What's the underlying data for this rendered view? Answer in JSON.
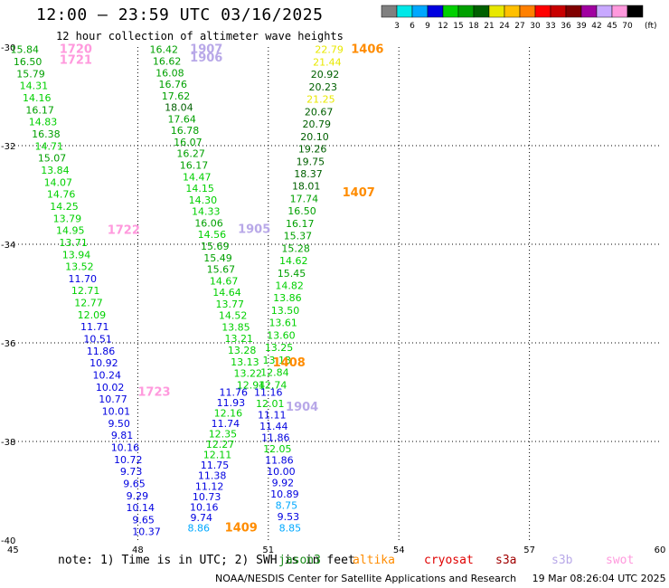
{
  "title": "12:00 — 23:59 UTC 03/16/2025",
  "subtitle": "12 hour collection of altimeter wave heights",
  "note": "note: 1) Time is in UTC; 2) SWH is in feet",
  "footer": {
    "credit": "NOAA/NESDIS Center for Satellite Applications and Research",
    "timestamp": "19 Mar 08:26:04 UTC 2025"
  },
  "satellites": [
    {
      "name": "jason3",
      "color": "#1a8c1a"
    },
    {
      "name": "altika",
      "color": "#ff8c00"
    },
    {
      "name": "cryosat",
      "color": "#e00000"
    },
    {
      "name": "s3a",
      "color": "#a00000"
    },
    {
      "name": "s3b",
      "color": "#b8a8e8"
    },
    {
      "name": "swot",
      "color": "#ff99dd"
    }
  ],
  "chart_data": {
    "type": "scatter",
    "title": "12:00 — 23:59 UTC 03/16/2025",
    "subtitle": "12 hour collection of altimeter wave heights",
    "xlabel": "",
    "ylabel": "",
    "xlim": [
      45,
      60
    ],
    "ylim": [
      -40,
      -30
    ],
    "x_ticks": [
      45,
      48,
      51,
      54,
      57,
      60
    ],
    "y_ticks": [
      -30,
      -32,
      -34,
      -36,
      -38,
      -40
    ],
    "grid": true,
    "legend": "top-right colorbar",
    "colorbar": {
      "labels": [
        "3",
        "6",
        "9",
        "12",
        "15",
        "18",
        "21",
        "24",
        "27",
        "30",
        "33",
        "36",
        "39",
        "42",
        "45",
        "70"
      ],
      "colors": [
        "#808080",
        "#00e8e8",
        "#00a8ff",
        "#0000e0",
        "#00d000",
        "#00a000",
        "#006000",
        "#e8e800",
        "#ffc000",
        "#ff8000",
        "#ff0000",
        "#c80000",
        "#800000",
        "#a000a0",
        "#c8a8ff",
        "#ff99dd",
        "#000000"
      ],
      "unit": "(ft)"
    },
    "track_labels": [
      {
        "text": "1720",
        "x": 46.2,
        "y": -30.05,
        "color": "#ff99dd"
      },
      {
        "text": "1721",
        "x": 46.2,
        "y": -30.27,
        "color": "#ff99dd"
      },
      {
        "text": "1722",
        "x": 47.3,
        "y": -33.72,
        "color": "#ff99dd"
      },
      {
        "text": "1723",
        "x": 48.0,
        "y": -37.0,
        "color": "#ff99dd"
      },
      {
        "text": "1907",
        "x": 49.2,
        "y": -30.05,
        "color": "#b8a8e8"
      },
      {
        "text": "1906",
        "x": 49.2,
        "y": -30.22,
        "color": "#b8a8e8"
      },
      {
        "text": "1905",
        "x": 50.3,
        "y": -33.7,
        "color": "#b8a8e8"
      },
      {
        "text": "1904",
        "x": 51.4,
        "y": -37.3,
        "color": "#b8a8e8"
      },
      {
        "text": "1406",
        "x": 52.9,
        "y": -30.05,
        "color": "#ff8c00"
      },
      {
        "text": "1407",
        "x": 52.7,
        "y": -32.95,
        "color": "#ff8c00"
      },
      {
        "text": "1408",
        "x": 51.1,
        "y": -36.4,
        "color": "#ff8c00"
      },
      {
        "text": "1409",
        "x": 50.0,
        "y": -39.75,
        "color": "#ff8c00"
      }
    ],
    "tracks": [
      {
        "x0": 45.4,
        "y0": -30.05,
        "x1": 48.2,
        "y1": -39.83,
        "values": [
          15.84,
          16.5,
          15.79,
          14.31,
          14.16,
          16.17,
          14.83,
          16.38,
          14.71,
          15.07,
          13.84,
          14.07,
          14.76,
          14.25,
          13.79,
          14.95,
          13.71,
          13.94,
          13.52,
          11.7,
          12.71,
          12.77,
          12.09,
          11.71,
          10.51,
          11.86,
          10.92,
          10.24,
          10.02,
          10.77,
          10.01,
          9.5,
          9.81,
          10.16,
          10.72,
          9.73,
          9.65,
          9.29,
          10.14,
          9.65,
          10.37
        ]
      },
      {
        "x0": 48.6,
        "y0": -30.05,
        "x1": 50.6,
        "y1": -36.85,
        "values": [
          16.42,
          16.62,
          16.08,
          16.76,
          17.62,
          18.04,
          17.64,
          16.78,
          16.07,
          16.27,
          16.17,
          14.47,
          14.15,
          14.3,
          14.33,
          16.06,
          14.56,
          15.69,
          15.49,
          15.67,
          14.67,
          14.64,
          13.77,
          14.52,
          13.85,
          13.21,
          13.28,
          13.13,
          13.22,
          12.94
        ]
      },
      {
        "x0": 50.2,
        "y0": -37.0,
        "x1": 49.4,
        "y1": -39.75,
        "values": [
          11.76,
          11.93,
          12.16,
          11.74,
          12.35,
          12.27,
          12.11,
          11.75,
          11.38,
          11.12,
          10.73,
          10.16,
          9.74,
          8.86
        ]
      },
      {
        "x0": 52.4,
        "y0": -30.05,
        "x1": 51.1,
        "y1": -36.85,
        "values": [
          22.79,
          21.44,
          20.92,
          20.23,
          21.25,
          20.67,
          20.79,
          20.1,
          19.26,
          19.75,
          18.37,
          18.01,
          17.74,
          16.5,
          16.17,
          15.37,
          15.28,
          14.62,
          15.45,
          14.82,
          13.86,
          13.5,
          13.61,
          13.6,
          13.25,
          13.13,
          12.84,
          12.74
        ]
      },
      {
        "x0": 51.0,
        "y0": -37.0,
        "x1": 51.5,
        "y1": -39.75,
        "values": [
          11.16,
          12.01,
          11.11,
          11.44,
          11.86,
          12.05,
          11.86,
          10.0,
          9.92,
          10.89,
          8.75,
          9.53,
          8.85
        ]
      }
    ]
  }
}
